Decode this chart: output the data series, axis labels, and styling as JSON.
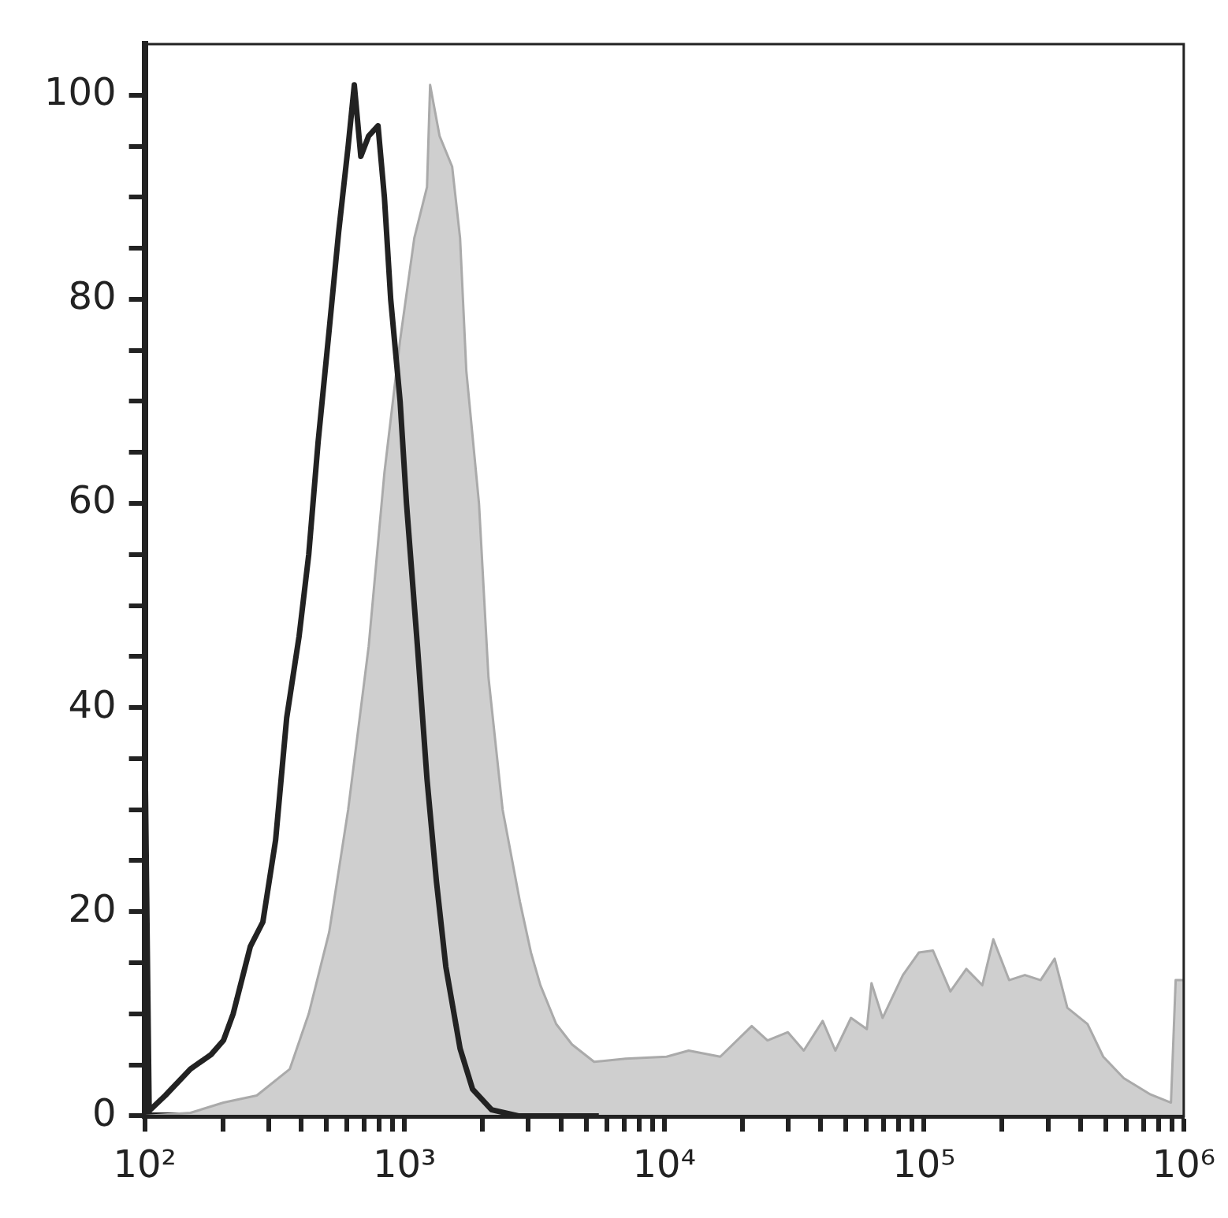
{
  "chart_data": {
    "type": "area",
    "log": "x",
    "xlim": [
      100,
      1000000
    ],
    "ylim": [
      0,
      105
    ],
    "xticks": [
      {
        "value": 100,
        "label": "10²"
      },
      {
        "value": 200,
        "label": null
      },
      {
        "value": 300,
        "label": null
      },
      {
        "value": 400,
        "label": null
      },
      {
        "value": 500,
        "label": null
      },
      {
        "value": 600,
        "label": null
      },
      {
        "value": 700,
        "label": null
      },
      {
        "value": 800,
        "label": null
      },
      {
        "value": 900,
        "label": null
      },
      {
        "value": 1000,
        "label": "10³"
      },
      {
        "value": 2000,
        "label": null
      },
      {
        "value": 3000,
        "label": null
      },
      {
        "value": 4000,
        "label": null
      },
      {
        "value": 5000,
        "label": null
      },
      {
        "value": 6000,
        "label": null
      },
      {
        "value": 7000,
        "label": null
      },
      {
        "value": 8000,
        "label": null
      },
      {
        "value": 9000,
        "label": null
      },
      {
        "value": 10000,
        "label": "10⁴"
      },
      {
        "value": 20000,
        "label": null
      },
      {
        "value": 30000,
        "label": null
      },
      {
        "value": 40000,
        "label": null
      },
      {
        "value": 50000,
        "label": null
      },
      {
        "value": 60000,
        "label": null
      },
      {
        "value": 70000,
        "label": null
      },
      {
        "value": 80000,
        "label": null
      },
      {
        "value": 90000,
        "label": null
      },
      {
        "value": 100000,
        "label": "10⁵"
      },
      {
        "value": 200000,
        "label": null
      },
      {
        "value": 300000,
        "label": null
      },
      {
        "value": 400000,
        "label": null
      },
      {
        "value": 500000,
        "label": null
      },
      {
        "value": 600000,
        "label": null
      },
      {
        "value": 700000,
        "label": null
      },
      {
        "value": 800000,
        "label": null
      },
      {
        "value": 900000,
        "label": null
      },
      {
        "value": 1000000,
        "label": "10⁶"
      }
    ],
    "yticks": [
      0,
      {
        "value": 5,
        "label": null
      },
      {
        "value": 10,
        "label": null
      },
      {
        "value": 15,
        "label": null
      },
      20,
      {
        "value": 25,
        "label": null
      },
      {
        "value": 30,
        "label": null
      },
      {
        "value": 35,
        "label": null
      },
      40,
      {
        "value": 45,
        "label": null
      },
      {
        "value": 50,
        "label": null
      },
      {
        "value": 55,
        "label": null
      },
      60,
      {
        "value": 65,
        "label": null
      },
      {
        "value": 70,
        "label": null
      },
      {
        "value": 75,
        "label": null
      },
      80,
      {
        "value": 85,
        "label": null
      },
      {
        "value": 90,
        "label": null
      },
      {
        "value": 95,
        "label": null
      },
      100
    ],
    "grid": false,
    "legend": false,
    "marker": "none",
    "line_style": "solid",
    "series": [
      {
        "color": "#cfcfcf",
        "x": [
          100,
          150,
          201,
          270,
          362,
          428,
          513,
          607,
          728,
          837,
          962,
          1091,
          1221,
          1255,
          1365,
          1526,
          1637,
          1730,
          1936,
          2105,
          2387,
          2782,
          3069,
          3337,
          3837,
          4416,
          5370,
          7100,
          10210,
          12420,
          16430,
          21720,
          24980,
          29930,
          34450,
          40740,
          45580,
          52360,
          60260,
          62810,
          69280,
          82980,
          95520,
          108300,
          126400,
          145500,
          167700,
          184900,
          212700,
          244600,
          281200,
          318500,
          356300,
          426300,
          489800,
          587500,
          744700,
          893000,
          931000,
          1000000
        ],
        "values": [
          0,
          0.3,
          1.3,
          2,
          4.6,
          10,
          18,
          30,
          46,
          63,
          76,
          86,
          91,
          101,
          96,
          93,
          86,
          73,
          60,
          43,
          30,
          21,
          16,
          12.8,
          9,
          7,
          5.3,
          5.6,
          5.8,
          6.4,
          5.8,
          8.8,
          7.4,
          8.2,
          6.4,
          9.3,
          6.4,
          9.6,
          8.5,
          13,
          9.6,
          13.8,
          16,
          16.2,
          12.2,
          14.4,
          12.8,
          17.3,
          13.3,
          13.8,
          13.3,
          15.4,
          10.6,
          9,
          5.8,
          3.7,
          2.1,
          1.3,
          13.3,
          13.3
        ]
      },
      {
        "type": "line",
        "color": "#222222",
        "x": [
          100,
          104,
          120,
          150,
          180,
          201,
          219,
          255,
          285,
          319,
          352,
          393,
          428,
          465,
          513,
          558,
          607,
          641,
          679,
          728,
          791,
          837,
          885,
          962,
          1018,
          1122,
          1221,
          1327,
          1443,
          1637,
          1830,
          2165,
          2745,
          5600
        ],
        "values": [
          38,
          0.5,
          2,
          4.6,
          6,
          7.4,
          10,
          16.6,
          19,
          27,
          39,
          47,
          55,
          66,
          77,
          86.6,
          95,
          101,
          94,
          96,
          97,
          90,
          80,
          70,
          60,
          46,
          33,
          23,
          14.6,
          6.6,
          2.6,
          0.6,
          0,
          0
        ]
      }
    ]
  }
}
